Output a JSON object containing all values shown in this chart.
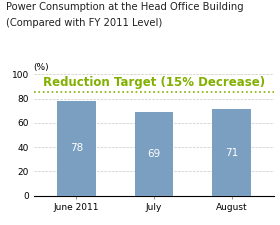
{
  "title_line1": "Power Consumption at the Head Office Building",
  "title_line2": "(Compared with FY 2011 Level)",
  "categories": [
    "June 2011",
    "July",
    "August"
  ],
  "values": [
    78,
    69,
    71
  ],
  "bar_color": "#7a9fc0",
  "ylabel": "(%)",
  "ylim": [
    0,
    100
  ],
  "yticks": [
    0,
    20,
    40,
    60,
    80,
    100
  ],
  "reduction_target_value": 85,
  "reduction_target_label": "Reduction Target (15% Decrease)",
  "reduction_target_color": "#82b000",
  "reduction_target_fontsize": 8.5,
  "title_fontsize": 7.2,
  "ylabel_fontsize": 6.5,
  "tick_fontsize": 6.5,
  "value_label_fontsize": 7.5,
  "background_color": "#ffffff",
  "grid_color": "#c8c8c8"
}
